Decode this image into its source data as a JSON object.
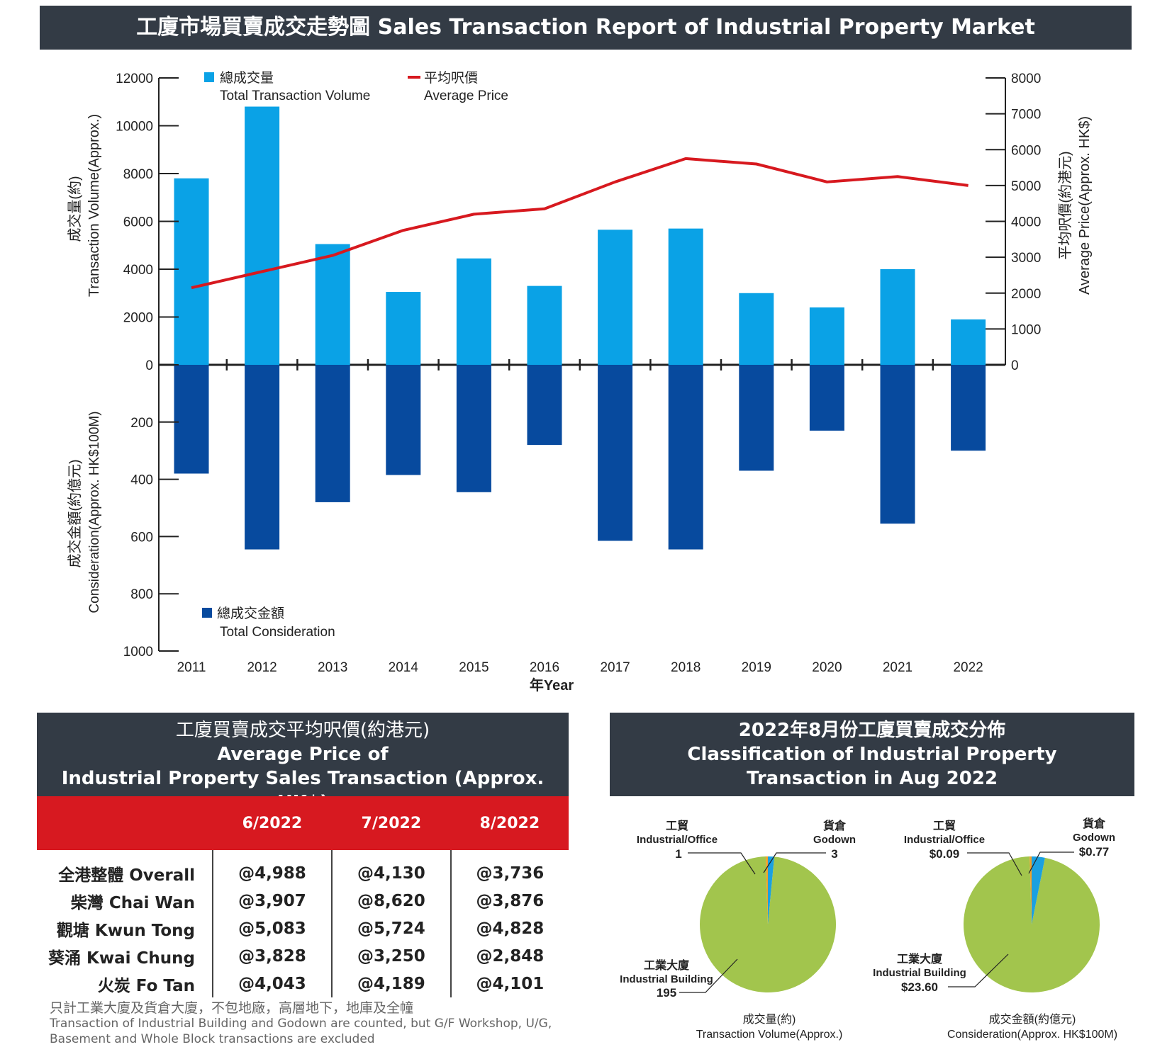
{
  "header": {
    "title": "工廈市場買賣成交走勢圖 Sales Transaction Report of Industrial Property Market"
  },
  "chart_data": [
    {
      "type": "bar",
      "title": "工廈市場買賣成交走勢圖 Sales Transaction Report of Industrial Property Market",
      "xlabel": "年Year",
      "categories": [
        "2011",
        "2012",
        "2013",
        "2014",
        "2015",
        "2016",
        "2017",
        "2018",
        "2019",
        "2020",
        "2021",
        "2022"
      ],
      "series": [
        {
          "name": "總成交量 Total Transaction Volume",
          "type": "bar",
          "axis": "left-upper",
          "values": [
            7800,
            10800,
            5050,
            3050,
            4450,
            3300,
            5650,
            5700,
            3000,
            2400,
            4000,
            1900
          ]
        },
        {
          "name": "平均呎價 Average Price",
          "type": "line",
          "axis": "right",
          "values": [
            2150,
            2600,
            3050,
            3750,
            4200,
            4350,
            5100,
            5750,
            5600,
            5100,
            5250,
            5000
          ]
        },
        {
          "name": "總成交金額 Total Consideration",
          "type": "bar",
          "axis": "left-lower",
          "values": [
            380,
            645,
            480,
            385,
            445,
            280,
            615,
            645,
            370,
            230,
            555,
            300
          ]
        }
      ],
      "legend": {
        "volume_zh": "總成交量",
        "volume_en": "Total Transaction Volume",
        "price_zh": "平均呎價",
        "price_en": "Average Price",
        "consideration_zh": "總成交金額",
        "consideration_en": "Total Consideration"
      },
      "axes": {
        "left_upper": {
          "label_zh": "成交量(約)",
          "label_en": "Transaction Volume(Approx.)",
          "range": [
            0,
            12000
          ],
          "ticks": [
            "12000",
            "10000",
            "8000",
            "6000",
            "4000",
            "2000",
            "0"
          ]
        },
        "left_lower": {
          "label_zh": "成交金額(約億元)",
          "label_en": "Consideration(Approx. HK$100M)",
          "range": [
            0,
            1000
          ],
          "ticks": [
            "200",
            "400",
            "600",
            "800",
            "1000"
          ]
        },
        "right": {
          "label_zh": "平均呎價(約港元)",
          "label_en": "Average Price(Approx. HK$)",
          "range": [
            0,
            8000
          ],
          "ticks": [
            "8000",
            "7000",
            "6000",
            "5000",
            "4000",
            "3000",
            "2000",
            "1000",
            "0"
          ]
        }
      },
      "colors": {
        "volume": "#0aa2e6",
        "price": "#d7191f",
        "consideration": "#074a9e"
      }
    },
    {
      "type": "pie",
      "title": "成交量(約) Transaction Volume(Approx.)",
      "slices": [
        {
          "name_zh": "工業大廈",
          "name_en": "Industrial Building",
          "label": "195",
          "value": 195,
          "color": "#a2c54d"
        },
        {
          "name_zh": "工貿",
          "name_en": "Industrial/Office",
          "label": "1",
          "value": 1,
          "color": "#f0a12a"
        },
        {
          "name_zh": "貨倉",
          "name_en": "Godown",
          "label": "3",
          "value": 3,
          "color": "#1ba0e0"
        }
      ]
    },
    {
      "type": "pie",
      "title": "成交金額(約億元) Consideration(Approx. HK$100M)",
      "slices": [
        {
          "name_zh": "工業大廈",
          "name_en": "Industrial Building",
          "label": "$23.60",
          "value": 23.6,
          "color": "#a2c54d"
        },
        {
          "name_zh": "工貿",
          "name_en": "Industrial/Office",
          "label": "$0.09",
          "value": 0.09,
          "color": "#f0a12a"
        },
        {
          "name_zh": "貨倉",
          "name_en": "Godown",
          "label": "$0.77",
          "value": 0.77,
          "color": "#1ba0e0"
        }
      ]
    }
  ],
  "price_section": {
    "title_zh": "工廈買賣成交平均呎價(約港元)",
    "title_en_1": "Average Price of",
    "title_en_2": "Industrial Property Sales Transaction (Approx. HK$)",
    "columns": [
      "6/2022",
      "7/2022",
      "8/2022"
    ],
    "rows": [
      {
        "region": "全港整體 Overall",
        "values": [
          "@4,988",
          "@4,130",
          "@3,736"
        ]
      },
      {
        "region": "柴灣 Chai Wan",
        "values": [
          "@3,907",
          "@8,620",
          "@3,876"
        ]
      },
      {
        "region": "觀塘 Kwun Tong",
        "values": [
          "@5,083",
          "@5,724",
          "@4,828"
        ]
      },
      {
        "region": "葵涌 Kwai Chung",
        "values": [
          "@3,828",
          "@3,250",
          "@2,848"
        ]
      },
      {
        "region": "火炭 Fo Tan",
        "values": [
          "@4,043",
          "@4,189",
          "@4,101"
        ]
      }
    ],
    "note_zh": "只計工業大廈及貨倉大廈，不包地廠，高層地下，地庫及全幢",
    "note_en": "Transaction of Industrial Building and Godown are counted, but G/F Workshop, U/G, Basement and Whole Block transactions are excluded"
  },
  "pie_section": {
    "title_1": "2022年8月份工廈買賣成交分佈",
    "title_2": "Classification of Industrial Property",
    "title_3": "Transaction in Aug 2022",
    "volume_caption_zh": "成交量(約)",
    "volume_caption_en": "Transaction Volume(Approx.)",
    "consideration_caption_zh": "成交金額(約億元)",
    "consideration_caption_en": "Consideration(Approx. HK$100M)"
  }
}
